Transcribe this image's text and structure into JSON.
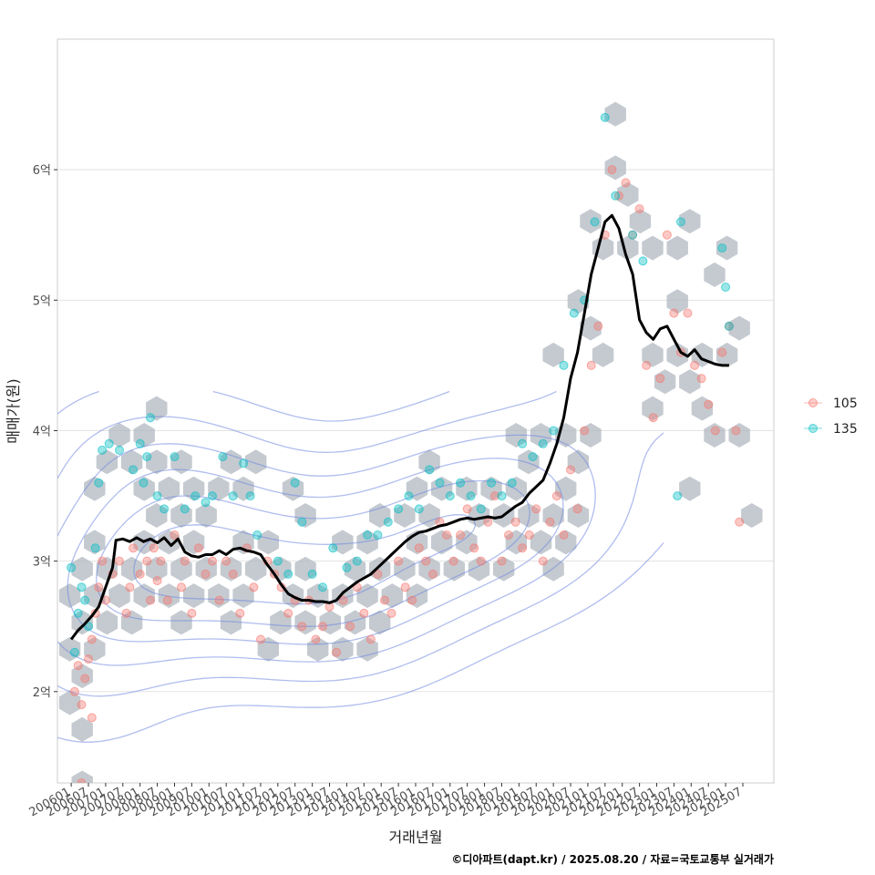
{
  "chart_data": {
    "type": "scatter",
    "title": "",
    "xlabel": "거래년월",
    "ylabel": "매매가(원)",
    "caption": "©디아파트(dapt.kr) / 2025.08.20 / 자료=국토교통부 실거래가",
    "xlim": [
      2005.6,
      2026.4
    ],
    "ylim": [
      1.3,
      7.0
    ],
    "grid": true,
    "legend_position": "right",
    "yticks": [
      {
        "value": 2,
        "label": "2억"
      },
      {
        "value": 3,
        "label": "3억"
      },
      {
        "value": 4,
        "label": "4억"
      },
      {
        "value": 5,
        "label": "5억"
      },
      {
        "value": 6,
        "label": "6억"
      }
    ],
    "xticks": [
      "200601",
      "200607",
      "200701",
      "200707",
      "200801",
      "200807",
      "200901",
      "200907",
      "201001",
      "201007",
      "201101",
      "201107",
      "201201",
      "201207",
      "201301",
      "201307",
      "201401",
      "201407",
      "201501",
      "201507",
      "201601",
      "201607",
      "201701",
      "201707",
      "201801",
      "201807",
      "201901",
      "201907",
      "202001",
      "202007",
      "202101",
      "202107",
      "202201",
      "202207",
      "202301",
      "202307",
      "202401",
      "202407",
      "202501",
      "202507"
    ],
    "colors": {
      "105": "#F8766D",
      "135": "#00BFC4",
      "trend": "#000000",
      "hex": "#B0B8C0",
      "density": "#6F86E0",
      "grid": "#E3E3E3",
      "panel_border": "#CCCCCC"
    },
    "series": [
      {
        "name": "105",
        "points": [
          [
            2006.1,
            2.0
          ],
          [
            2006.2,
            2.2
          ],
          [
            2006.3,
            1.9
          ],
          [
            2006.4,
            2.1
          ],
          [
            2006.5,
            2.25
          ],
          [
            2006.6,
            2.4
          ],
          [
            2006.6,
            1.8
          ],
          [
            2006.3,
            1.3
          ],
          [
            2006.7,
            2.6
          ],
          [
            2006.8,
            2.8
          ],
          [
            2006.9,
            3.0
          ],
          [
            2007.0,
            2.7
          ],
          [
            2007.2,
            2.9
          ],
          [
            2007.4,
            3.0
          ],
          [
            2007.6,
            2.6
          ],
          [
            2007.7,
            2.8
          ],
          [
            2007.8,
            3.1
          ],
          [
            2008.0,
            2.9
          ],
          [
            2008.2,
            3.0
          ],
          [
            2008.3,
            2.7
          ],
          [
            2008.4,
            3.1
          ],
          [
            2008.5,
            2.85
          ],
          [
            2008.6,
            3.0
          ],
          [
            2008.8,
            2.7
          ],
          [
            2009.0,
            3.2
          ],
          [
            2009.2,
            2.8
          ],
          [
            2009.3,
            3.0
          ],
          [
            2009.5,
            2.6
          ],
          [
            2009.7,
            3.1
          ],
          [
            2009.9,
            2.9
          ],
          [
            2010.1,
            3.0
          ],
          [
            2010.3,
            2.7
          ],
          [
            2010.5,
            3.0
          ],
          [
            2010.7,
            2.9
          ],
          [
            2010.9,
            2.6
          ],
          [
            2011.1,
            3.1
          ],
          [
            2011.3,
            2.8
          ],
          [
            2011.5,
            2.4
          ],
          [
            2011.7,
            3.0
          ],
          [
            2011.9,
            2.9
          ],
          [
            2012.1,
            2.8
          ],
          [
            2012.3,
            2.6
          ],
          [
            2012.5,
            2.7
          ],
          [
            2012.7,
            2.5
          ],
          [
            2012.9,
            2.7
          ],
          [
            2013.1,
            2.4
          ],
          [
            2013.3,
            2.5
          ],
          [
            2013.5,
            2.65
          ],
          [
            2013.7,
            2.3
          ],
          [
            2013.9,
            2.7
          ],
          [
            2014.1,
            2.5
          ],
          [
            2014.3,
            2.8
          ],
          [
            2014.5,
            2.6
          ],
          [
            2014.7,
            2.4
          ],
          [
            2014.9,
            2.9
          ],
          [
            2015.1,
            2.7
          ],
          [
            2015.3,
            2.6
          ],
          [
            2015.5,
            3.0
          ],
          [
            2015.7,
            2.8
          ],
          [
            2015.9,
            2.7
          ],
          [
            2016.1,
            3.1
          ],
          [
            2016.3,
            3.0
          ],
          [
            2016.5,
            2.9
          ],
          [
            2016.7,
            3.3
          ],
          [
            2016.9,
            3.2
          ],
          [
            2017.1,
            3.0
          ],
          [
            2017.3,
            3.2
          ],
          [
            2017.5,
            3.4
          ],
          [
            2017.7,
            3.1
          ],
          [
            2017.9,
            3.0
          ],
          [
            2018.1,
            3.3
          ],
          [
            2018.3,
            3.5
          ],
          [
            2018.5,
            3.0
          ],
          [
            2018.7,
            3.2
          ],
          [
            2018.9,
            3.3
          ],
          [
            2019.1,
            3.1
          ],
          [
            2019.3,
            3.2
          ],
          [
            2019.5,
            3.4
          ],
          [
            2019.7,
            3.0
          ],
          [
            2019.9,
            3.3
          ],
          [
            2020.1,
            3.5
          ],
          [
            2020.3,
            3.2
          ],
          [
            2020.5,
            3.7
          ],
          [
            2020.7,
            3.4
          ],
          [
            2020.9,
            4.0
          ],
          [
            2021.1,
            4.5
          ],
          [
            2021.3,
            4.8
          ],
          [
            2021.5,
            5.5
          ],
          [
            2021.7,
            6.0
          ],
          [
            2021.9,
            5.8
          ],
          [
            2022.1,
            5.9
          ],
          [
            2022.3,
            5.5
          ],
          [
            2022.5,
            5.7
          ],
          [
            2022.7,
            4.5
          ],
          [
            2022.9,
            4.1
          ],
          [
            2023.1,
            4.4
          ],
          [
            2023.3,
            5.5
          ],
          [
            2023.5,
            4.9
          ],
          [
            2023.7,
            4.6
          ],
          [
            2023.9,
            4.9
          ],
          [
            2024.1,
            4.5
          ],
          [
            2024.3,
            4.4
          ],
          [
            2024.5,
            4.2
          ],
          [
            2024.7,
            4.0
          ],
          [
            2024.9,
            4.6
          ],
          [
            2025.1,
            4.8
          ],
          [
            2025.3,
            4.0
          ],
          [
            2025.4,
            3.3
          ]
        ]
      },
      {
        "name": "135",
        "points": [
          [
            2006.0,
            2.95
          ],
          [
            2006.1,
            2.3
          ],
          [
            2006.2,
            2.6
          ],
          [
            2006.3,
            2.8
          ],
          [
            2006.4,
            2.7
          ],
          [
            2006.5,
            2.5
          ],
          [
            2006.7,
            3.1
          ],
          [
            2006.8,
            3.6
          ],
          [
            2006.9,
            3.85
          ],
          [
            2007.1,
            3.9
          ],
          [
            2007.4,
            3.85
          ],
          [
            2007.8,
            3.7
          ],
          [
            2008.0,
            3.9
          ],
          [
            2008.1,
            3.6
          ],
          [
            2008.2,
            3.8
          ],
          [
            2008.3,
            4.1
          ],
          [
            2008.5,
            3.5
          ],
          [
            2008.7,
            3.4
          ],
          [
            2009.0,
            3.8
          ],
          [
            2009.3,
            3.4
          ],
          [
            2009.6,
            3.5
          ],
          [
            2009.9,
            3.45
          ],
          [
            2010.1,
            3.5
          ],
          [
            2010.4,
            3.8
          ],
          [
            2010.7,
            3.5
          ],
          [
            2011.0,
            3.75
          ],
          [
            2011.2,
            3.5
          ],
          [
            2011.4,
            3.2
          ],
          [
            2012.0,
            3.0
          ],
          [
            2012.3,
            2.9
          ],
          [
            2012.5,
            3.6
          ],
          [
            2012.7,
            3.3
          ],
          [
            2013.0,
            2.9
          ],
          [
            2013.3,
            2.8
          ],
          [
            2013.6,
            3.1
          ],
          [
            2014.0,
            2.95
          ],
          [
            2014.3,
            3.0
          ],
          [
            2014.6,
            3.2
          ],
          [
            2014.9,
            3.2
          ],
          [
            2015.2,
            3.3
          ],
          [
            2015.5,
            3.4
          ],
          [
            2015.8,
            3.5
          ],
          [
            2016.1,
            3.4
          ],
          [
            2016.4,
            3.7
          ],
          [
            2016.7,
            3.6
          ],
          [
            2017.0,
            3.5
          ],
          [
            2017.3,
            3.6
          ],
          [
            2017.6,
            3.5
          ],
          [
            2017.9,
            3.4
          ],
          [
            2018.2,
            3.6
          ],
          [
            2018.5,
            3.5
          ],
          [
            2018.8,
            3.6
          ],
          [
            2019.1,
            3.9
          ],
          [
            2019.4,
            3.8
          ],
          [
            2019.7,
            3.9
          ],
          [
            2020.0,
            4.0
          ],
          [
            2020.3,
            4.5
          ],
          [
            2020.6,
            4.9
          ],
          [
            2020.9,
            5.0
          ],
          [
            2021.2,
            5.6
          ],
          [
            2021.5,
            6.4
          ],
          [
            2021.8,
            5.8
          ],
          [
            2022.3,
            5.5
          ],
          [
            2022.6,
            5.3
          ],
          [
            2023.6,
            3.5
          ],
          [
            2023.7,
            5.6
          ],
          [
            2024.9,
            5.4
          ],
          [
            2025.0,
            5.1
          ],
          [
            2025.1,
            4.8
          ]
        ]
      }
    ],
    "trend": {
      "name": "trend",
      "points": [
        [
          2006.0,
          2.4
        ],
        [
          2006.2,
          2.47
        ],
        [
          2006.4,
          2.52
        ],
        [
          2006.6,
          2.58
        ],
        [
          2006.8,
          2.65
        ],
        [
          2007.0,
          2.8
        ],
        [
          2007.2,
          2.95
        ],
        [
          2007.3,
          3.16
        ],
        [
          2007.5,
          3.17
        ],
        [
          2007.7,
          3.15
        ],
        [
          2007.9,
          3.18
        ],
        [
          2008.1,
          3.15
        ],
        [
          2008.3,
          3.17
        ],
        [
          2008.5,
          3.14
        ],
        [
          2008.7,
          3.18
        ],
        [
          2008.9,
          3.12
        ],
        [
          2009.1,
          3.17
        ],
        [
          2009.3,
          3.07
        ],
        [
          2009.5,
          3.04
        ],
        [
          2009.7,
          3.03
        ],
        [
          2009.9,
          3.05
        ],
        [
          2010.1,
          3.05
        ],
        [
          2010.3,
          3.08
        ],
        [
          2010.5,
          3.05
        ],
        [
          2010.7,
          3.09
        ],
        [
          2010.9,
          3.1
        ],
        [
          2011.1,
          3.08
        ],
        [
          2011.3,
          3.07
        ],
        [
          2011.5,
          3.05
        ],
        [
          2011.7,
          2.97
        ],
        [
          2011.9,
          2.9
        ],
        [
          2012.1,
          2.82
        ],
        [
          2012.3,
          2.75
        ],
        [
          2012.5,
          2.72
        ],
        [
          2012.7,
          2.7
        ],
        [
          2012.9,
          2.7
        ],
        [
          2013.1,
          2.69
        ],
        [
          2013.3,
          2.69
        ],
        [
          2013.5,
          2.68
        ],
        [
          2013.7,
          2.7
        ],
        [
          2013.9,
          2.76
        ],
        [
          2014.1,
          2.8
        ],
        [
          2014.3,
          2.84
        ],
        [
          2014.5,
          2.87
        ],
        [
          2014.7,
          2.9
        ],
        [
          2014.9,
          2.95
        ],
        [
          2015.1,
          3.0
        ],
        [
          2015.3,
          3.05
        ],
        [
          2015.5,
          3.1
        ],
        [
          2015.7,
          3.15
        ],
        [
          2015.9,
          3.19
        ],
        [
          2016.1,
          3.22
        ],
        [
          2016.3,
          3.23
        ],
        [
          2016.5,
          3.25
        ],
        [
          2016.7,
          3.27
        ],
        [
          2016.9,
          3.28
        ],
        [
          2017.1,
          3.3
        ],
        [
          2017.3,
          3.32
        ],
        [
          2017.5,
          3.33
        ],
        [
          2017.7,
          3.32
        ],
        [
          2017.9,
          3.33
        ],
        [
          2018.1,
          3.34
        ],
        [
          2018.3,
          3.33
        ],
        [
          2018.5,
          3.34
        ],
        [
          2018.7,
          3.38
        ],
        [
          2018.9,
          3.42
        ],
        [
          2019.1,
          3.45
        ],
        [
          2019.3,
          3.52
        ],
        [
          2019.5,
          3.57
        ],
        [
          2019.7,
          3.62
        ],
        [
          2019.9,
          3.75
        ],
        [
          2020.1,
          3.9
        ],
        [
          2020.3,
          4.1
        ],
        [
          2020.5,
          4.4
        ],
        [
          2020.7,
          4.6
        ],
        [
          2020.9,
          4.9
        ],
        [
          2021.1,
          5.2
        ],
        [
          2021.3,
          5.4
        ],
        [
          2021.5,
          5.6
        ],
        [
          2021.7,
          5.65
        ],
        [
          2021.9,
          5.55
        ],
        [
          2022.1,
          5.35
        ],
        [
          2022.3,
          5.2
        ],
        [
          2022.5,
          4.85
        ],
        [
          2022.7,
          4.75
        ],
        [
          2022.9,
          4.7
        ],
        [
          2023.1,
          4.78
        ],
        [
          2023.3,
          4.8
        ],
        [
          2023.5,
          4.7
        ],
        [
          2023.7,
          4.6
        ],
        [
          2023.9,
          4.57
        ],
        [
          2024.1,
          4.62
        ],
        [
          2024.3,
          4.55
        ],
        [
          2024.5,
          4.53
        ],
        [
          2024.7,
          4.51
        ],
        [
          2024.9,
          4.5
        ],
        [
          2025.1,
          4.5
        ]
      ]
    }
  }
}
